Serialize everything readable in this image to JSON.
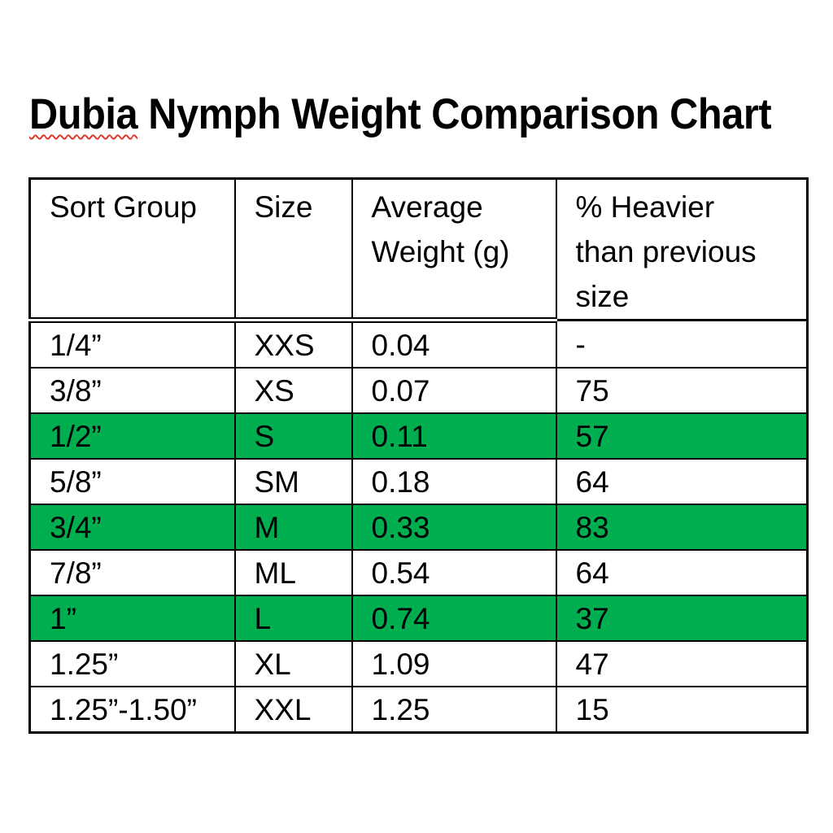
{
  "title": {
    "misspelled_word": "Dubia",
    "rest": " Nymph Weight Comparison Chart",
    "full": "Dubia Nymph Weight Comparison Chart"
  },
  "colors": {
    "highlight_green": "#00AE4F",
    "spellcheck_red": "#E0342B",
    "text": "#000000",
    "border": "#000000",
    "background": "#FFFFFF"
  },
  "table": {
    "columns": [
      {
        "key": "sort-group",
        "label": "Sort Group",
        "lines": [
          "Sort Group"
        ]
      },
      {
        "key": "size",
        "label": "Size",
        "lines": [
          "Size"
        ]
      },
      {
        "key": "average-weight",
        "label": "Average Weight (g)",
        "lines": [
          "Average",
          "Weight (g)"
        ]
      },
      {
        "key": "pct-heavier",
        "label": "% Heavier than previous size",
        "lines": [
          "% Heavier",
          "than previous",
          "size"
        ]
      }
    ],
    "rows": [
      {
        "cells": [
          "1/4”",
          "XXS",
          "0.04",
          "-"
        ],
        "highlighted": false
      },
      {
        "cells": [
          "3/8”",
          "XS",
          "0.07",
          "75"
        ],
        "highlighted": false
      },
      {
        "cells": [
          "1/2”",
          "S",
          "0.11",
          "57"
        ],
        "highlighted": true
      },
      {
        "cells": [
          "5/8”",
          "SM",
          "0.18",
          "64"
        ],
        "highlighted": false
      },
      {
        "cells": [
          "3/4”",
          "M",
          "0.33",
          "83"
        ],
        "highlighted": true
      },
      {
        "cells": [
          "7/8”",
          "ML",
          "0.54",
          "64"
        ],
        "highlighted": false
      },
      {
        "cells": [
          "1”",
          "L",
          "0.74",
          "37"
        ],
        "highlighted": true
      },
      {
        "cells": [
          "1.25”",
          "XL",
          "1.09",
          "47"
        ],
        "highlighted": false
      },
      {
        "cells": [
          "1.25”-1.50”",
          "XXL",
          "1.25",
          "15"
        ],
        "highlighted": false
      }
    ]
  }
}
